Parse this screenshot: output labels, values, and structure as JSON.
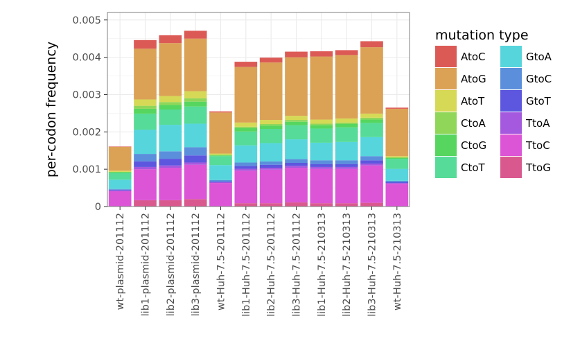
{
  "chart_data": {
    "type": "bar",
    "stacked": true,
    "ylabel": "per-codon frequency",
    "xlabel": "",
    "ylim": [
      0,
      0.0052
    ],
    "yticks": [
      0,
      0.001,
      0.002,
      0.003,
      0.004,
      0.005
    ],
    "ytick_labels": [
      "0",
      "0.001",
      "0.002",
      "0.003",
      "0.004",
      "0.005"
    ],
    "grid": true,
    "legend_position": "right",
    "legend_title": "mutation type",
    "categories": [
      "wt-plasmid-201112",
      "lib1-plasmid-201112",
      "lib2-plasmid-201112",
      "lib3-plasmid-201112",
      "wt-Huh-7.5-201112",
      "lib1-Huh-7.5-201112",
      "lib2-Huh-7.5-201112",
      "lib3-Huh-7.5-201112",
      "lib1-Huh-7.5-210313",
      "lib2-Huh-7.5-210313",
      "lib3-Huh-7.5-210313",
      "wt-Huh-7.5-210313"
    ],
    "series": [
      {
        "name": "TtoG",
        "color": "#d9598f",
        "values": [
          1e-05,
          0.00017,
          0.00017,
          0.0002,
          1e-05,
          9e-05,
          9e-05,
          0.00011,
          9e-05,
          9e-05,
          0.0001,
          1e-05
        ]
      },
      {
        "name": "TtoC",
        "color": "#dc55d6",
        "values": [
          0.0004,
          0.00083,
          0.00087,
          0.00092,
          0.00062,
          0.00087,
          0.0009,
          0.00093,
          0.00092,
          0.00092,
          0.001,
          0.0006
        ]
      },
      {
        "name": "TtoA",
        "color": "#a559de",
        "values": [
          2e-05,
          6e-05,
          6e-05,
          6e-05,
          2e-05,
          5e-05,
          5e-05,
          5e-05,
          5e-05,
          5e-05,
          5e-05,
          2e-05
        ]
      },
      {
        "name": "GtoT",
        "color": "#5d56de",
        "values": [
          2e-05,
          0.00015,
          0.00018,
          0.00019,
          2e-05,
          8e-05,
          8e-05,
          8e-05,
          8e-05,
          8e-05,
          9e-05,
          2e-05
        ]
      },
      {
        "name": "GtoC",
        "color": "#5b8fdc",
        "values": [
          2e-05,
          0.0002,
          0.0002,
          0.00022,
          4e-05,
          9e-05,
          9e-05,
          0.0001,
          0.0001,
          0.0001,
          0.00011,
          4e-05
        ]
      },
      {
        "name": "GtoA",
        "color": "#56d5dc",
        "values": [
          0.00025,
          0.00065,
          0.00071,
          0.00063,
          0.0004,
          0.00046,
          0.00049,
          0.00053,
          0.00047,
          0.00049,
          0.00051,
          0.00032
        ]
      },
      {
        "name": "CtoT",
        "color": "#56db98",
        "values": [
          0.00018,
          0.00043,
          0.00041,
          0.00046,
          0.00024,
          0.00037,
          0.00038,
          0.00038,
          0.00038,
          0.00039,
          0.00038,
          0.00027
        ]
      },
      {
        "name": "CtoG",
        "color": "#56d65e",
        "values": [
          2e-05,
          0.00013,
          0.00012,
          0.00013,
          2e-05,
          9e-05,
          9e-05,
          9e-05,
          9e-05,
          9e-05,
          9e-05,
          2e-05
        ]
      },
      {
        "name": "CtoA",
        "color": "#8fd659",
        "values": [
          1e-05,
          8e-05,
          8e-05,
          9e-05,
          2e-05,
          4e-05,
          4e-05,
          5e-05,
          4e-05,
          4e-05,
          5e-05,
          2e-05
        ]
      },
      {
        "name": "AtoT",
        "color": "#d6d955",
        "values": [
          3e-05,
          0.00017,
          0.00016,
          0.00019,
          3e-05,
          0.00011,
          0.00011,
          0.00011,
          0.00011,
          0.00011,
          0.00011,
          3e-05
        ]
      },
      {
        "name": "AtoG",
        "color": "#dba256",
        "values": [
          0.00064,
          0.00136,
          0.00142,
          0.00141,
          0.0011,
          0.00149,
          0.00154,
          0.00157,
          0.00169,
          0.0017,
          0.00178,
          0.00127
        ]
      },
      {
        "name": "AtoC",
        "color": "#dc5a56",
        "values": [
          1e-05,
          0.00023,
          0.00021,
          0.00021,
          3e-05,
          0.00014,
          0.00013,
          0.00015,
          0.00014,
          0.00013,
          0.00016,
          3e-05
        ]
      }
    ],
    "legend_order": [
      "AtoC",
      "AtoG",
      "AtoT",
      "CtoA",
      "CtoG",
      "CtoT",
      "GtoA",
      "GtoC",
      "GtoT",
      "TtoA",
      "TtoC",
      "TtoG"
    ]
  }
}
